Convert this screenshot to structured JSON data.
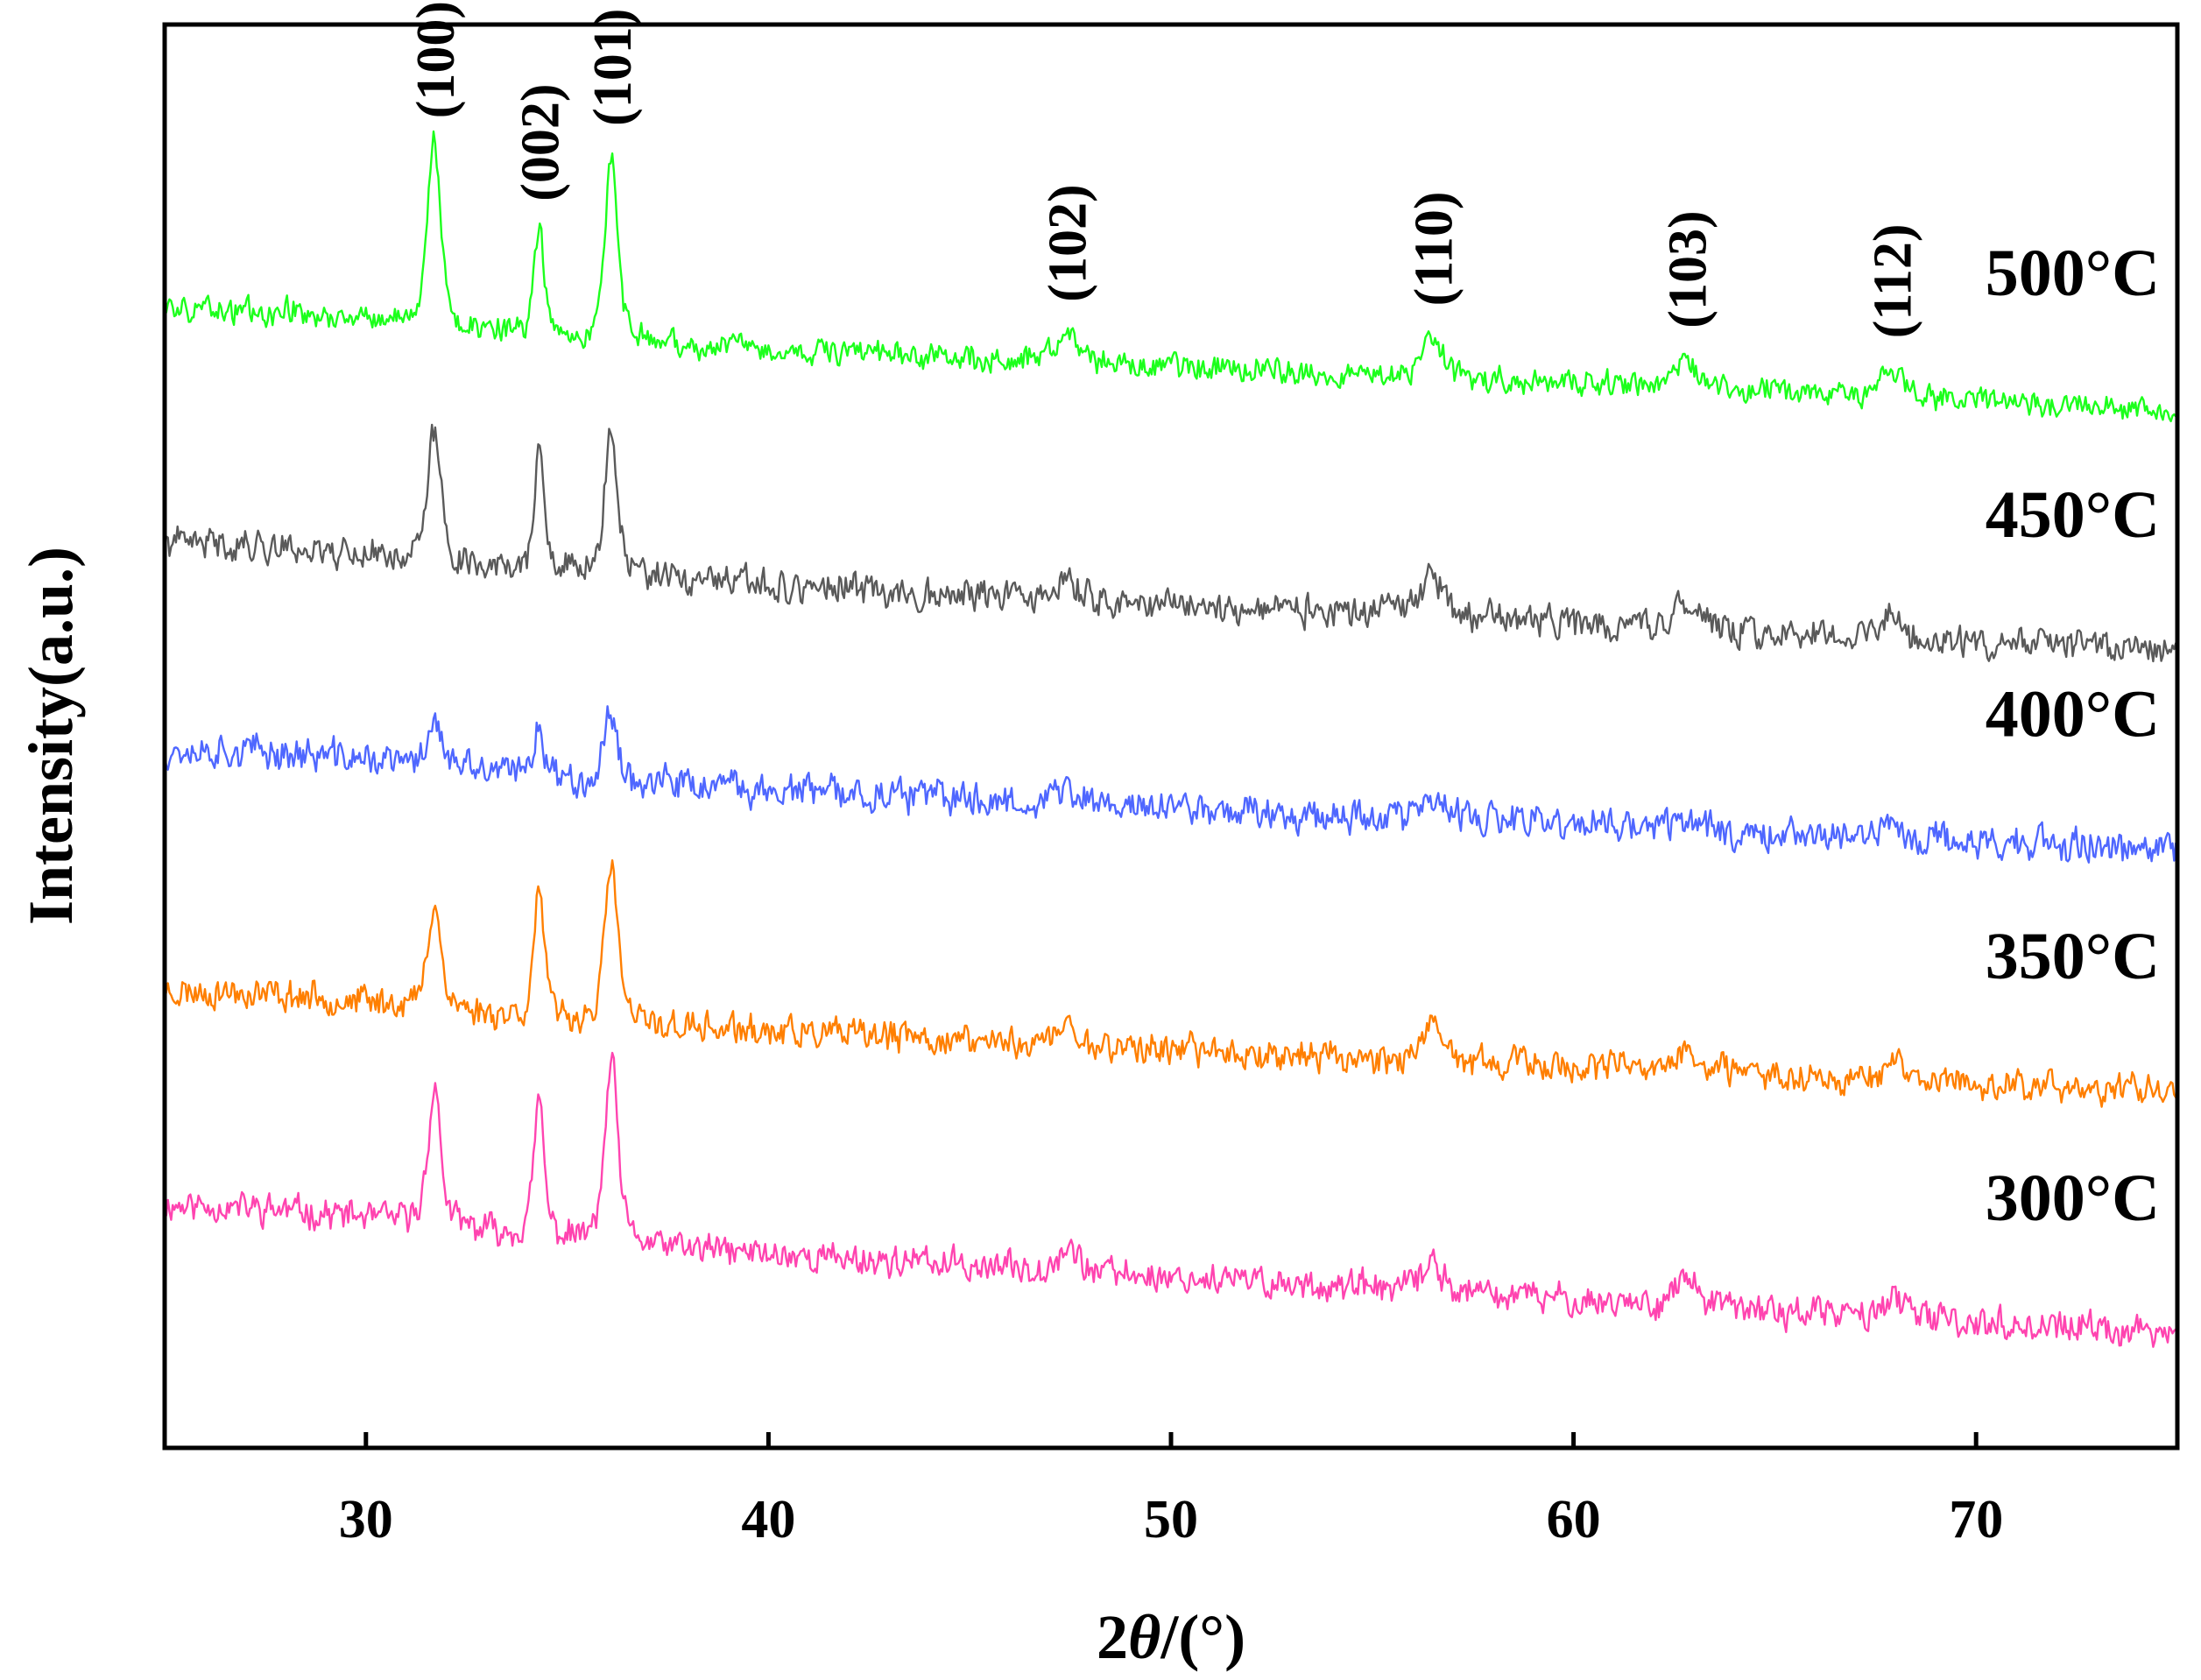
{
  "chart_data": {
    "type": "line",
    "title": "",
    "xlabel_prefix": "2",
    "xlabel_symbol": "θ",
    "xlabel_suffix": "/(°)",
    "ylabel": "Intensity(a.u.)",
    "xlim": [
      25,
      75
    ],
    "ylim": [
      0,
      100
    ],
    "x_ticks": [
      30,
      40,
      50,
      60,
      70
    ],
    "y_ticks_shown": false,
    "grid": false,
    "step_degrees": 0.04,
    "peaks": [
      {
        "hkl": "(100)",
        "position": 31.7,
        "width": 0.22
      },
      {
        "hkl": "(002)",
        "position": 34.3,
        "width": 0.17
      },
      {
        "hkl": "(101)",
        "position": 36.1,
        "width": 0.22
      },
      {
        "hkl": "(102)",
        "position": 47.4,
        "width": 0.35
      },
      {
        "hkl": "(110)",
        "position": 56.5,
        "width": 0.35
      },
      {
        "hkl": "(103)",
        "position": 62.8,
        "width": 0.35
      },
      {
        "hkl": "(112)",
        "position": 67.9,
        "width": 0.35
      }
    ],
    "series": [
      {
        "name": "300°C",
        "color": "#ff44b0",
        "baseline_start": 16.0,
        "baseline_end": 8.0,
        "noise": 1.1,
        "peak_heights": [
          9.5,
          9.5,
          12.5,
          1.7,
          2.0,
          2.0,
          1.5
        ],
        "seed": 11
      },
      {
        "name": "350°C",
        "color": "#ff7f00",
        "baseline_start": 31.0,
        "baseline_end": 25.0,
        "noise": 1.1,
        "peak_heights": [
          7.5,
          9.0,
          11.0,
          1.3,
          2.0,
          1.5,
          1.2
        ],
        "seed": 23
      },
      {
        "name": "400°C",
        "color": "#4f67ff",
        "baseline_start": 48.0,
        "baseline_end": 42.0,
        "noise": 1.2,
        "peak_heights": [
          3.5,
          3.8,
          5.0,
          0.9,
          1.3,
          1.0,
          0.8
        ],
        "seed": 37
      },
      {
        "name": "450°C",
        "color": "#5a5a5a",
        "baseline_start": 62.5,
        "baseline_end": 56.0,
        "noise": 1.1,
        "peak_heights": [
          9.0,
          8.0,
          10.0,
          1.2,
          3.0,
          1.8,
          1.3
        ],
        "seed": 41
      },
      {
        "name": "500°C",
        "color": "#1cff1c",
        "baseline_start": 79.0,
        "baseline_end": 73.0,
        "noise": 0.9,
        "peak_heights": [
          13.0,
          7.5,
          13.0,
          2.0,
          2.8,
          2.0,
          1.9
        ],
        "seed": 59
      }
    ]
  }
}
